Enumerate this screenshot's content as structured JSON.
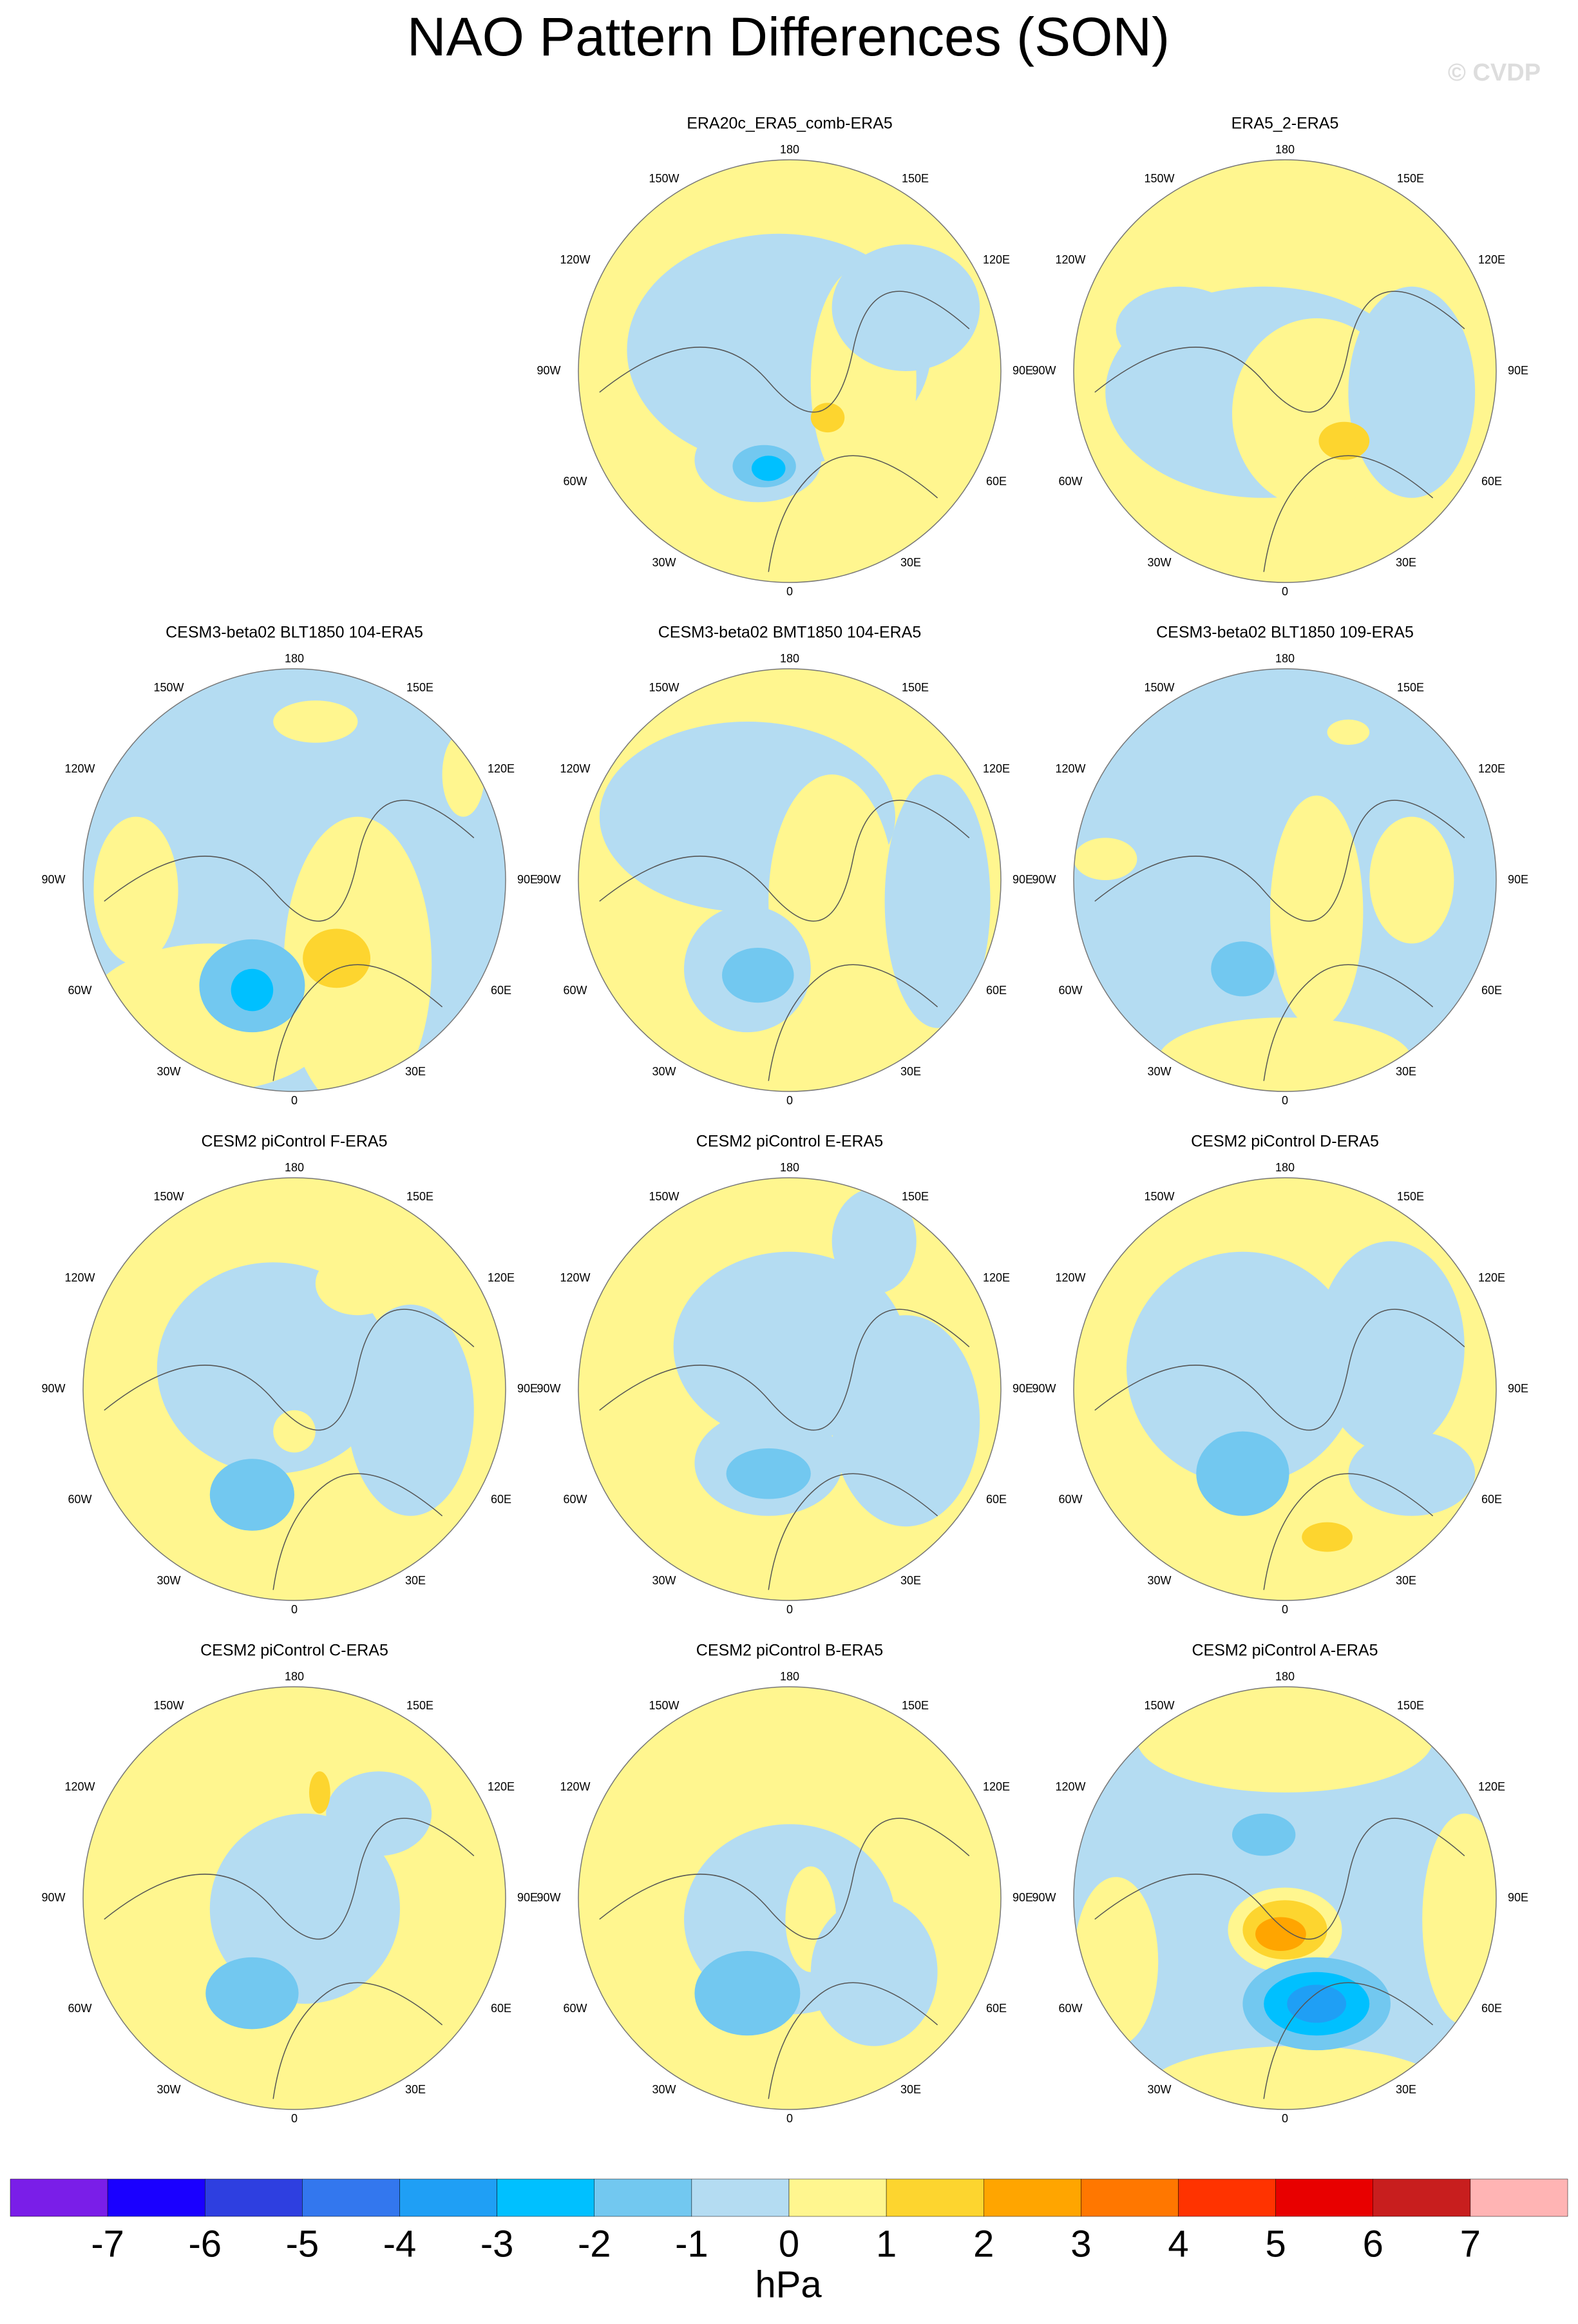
{
  "title": "NAO Pattern Differences (SON)",
  "watermark": "© CVDP",
  "lon_labels": [
    "180",
    "150W",
    "150E",
    "120W",
    "120E",
    "90W",
    "90E",
    "60W",
    "60E",
    "30W",
    "30E",
    "0"
  ],
  "panels": [
    {
      "title": "ERA20c_ERA5_comb-ERA5"
    },
    {
      "title": "ERA5_2-ERA5"
    },
    {
      "title": "CESM3-beta02 BLT1850 104-ERA5"
    },
    {
      "title": "CESM3-beta02 BMT1850 104-ERA5"
    },
    {
      "title": "CESM3-beta02 BLT1850 109-ERA5"
    },
    {
      "title": "CESM2 piControl F-ERA5"
    },
    {
      "title": "CESM2 piControl E-ERA5"
    },
    {
      "title": "CESM2 piControl D-ERA5"
    },
    {
      "title": "CESM2 piControl C-ERA5"
    },
    {
      "title": "CESM2 piControl B-ERA5"
    },
    {
      "title": "CESM2 piControl A-ERA5"
    }
  ],
  "colorbar": {
    "levels": [
      -7,
      -6,
      -5,
      -4,
      -3,
      -2,
      -1,
      0,
      1,
      2,
      3,
      4,
      5,
      6,
      7
    ],
    "colors": [
      "#7a1ee8",
      "#1a00ff",
      "#2e3fe0",
      "#3377ee",
      "#1f9ff5",
      "#00c0ff",
      "#72c8f0",
      "#b4dcf2",
      "#fff68f",
      "#fdd52f",
      "#ffa500",
      "#ff7700",
      "#ff3300",
      "#e80000",
      "#c81e1e",
      "#ffb4b4"
    ],
    "label": "hPa"
  }
}
